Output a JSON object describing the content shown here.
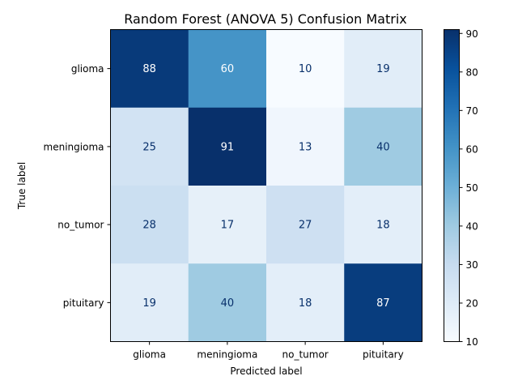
{
  "chart_data": {
    "type": "heatmap",
    "title": "Random Forest (ANOVA 5) Confusion Matrix",
    "xlabel": "Predicted label",
    "ylabel": "True label",
    "x_categories": [
      "glioma",
      "meningioma",
      "no_tumor",
      "pituitary"
    ],
    "y_categories": [
      "glioma",
      "meningioma",
      "no_tumor",
      "pituitary"
    ],
    "values": [
      [
        88,
        60,
        10,
        19
      ],
      [
        25,
        91,
        13,
        40
      ],
      [
        28,
        17,
        27,
        18
      ],
      [
        19,
        40,
        18,
        87
      ]
    ],
    "colormap": "Blues",
    "colorbar": {
      "min": 10,
      "max": 91,
      "ticks": [
        10,
        20,
        30,
        40,
        50,
        60,
        70,
        80,
        90
      ]
    },
    "colors": {
      "low": "#f7fbff",
      "high": "#08306b",
      "text_dark": "#08306b",
      "text_light": "#ffffff"
    }
  }
}
